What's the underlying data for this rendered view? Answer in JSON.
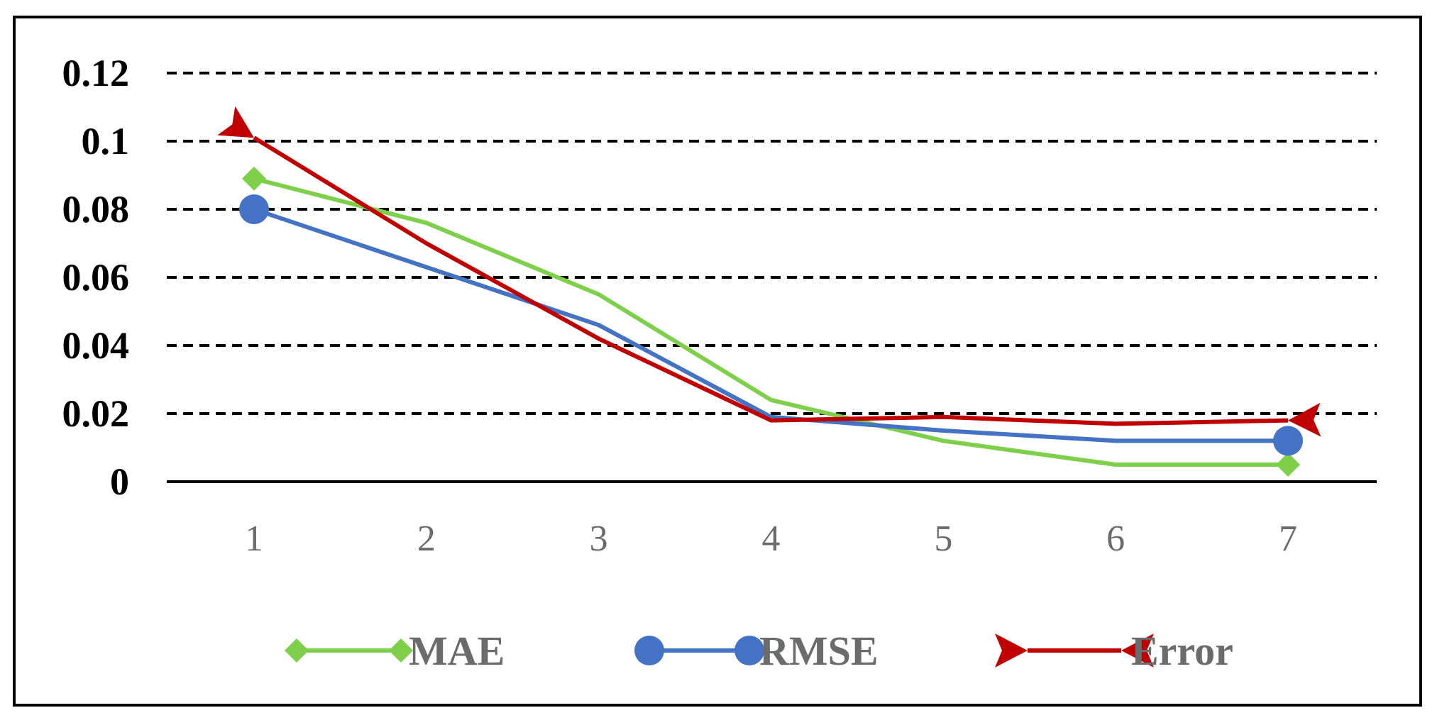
{
  "chart_data": {
    "type": "line",
    "title": "",
    "xlabel": "",
    "ylabel": "",
    "x": [
      1,
      2,
      3,
      4,
      5,
      6,
      7
    ],
    "x_tick_labels": [
      "1",
      "2",
      "3",
      "4",
      "5",
      "6",
      "7"
    ],
    "ylim": [
      0,
      0.12
    ],
    "y_ticks": [
      0,
      0.02,
      0.04,
      0.06,
      0.08,
      0.1,
      0.12
    ],
    "y_tick_labels": [
      "0",
      "0.02",
      "0.04",
      "0.06",
      "0.08",
      "0.1",
      "0.12"
    ],
    "grid": true,
    "grid_style": "dashed",
    "legend_position": "bottom",
    "series": [
      {
        "name": "MAE",
        "color": "#7ED04B",
        "marker": "diamond",
        "values": [
          0.089,
          0.076,
          0.055,
          0.024,
          0.012,
          0.005,
          0.005
        ]
      },
      {
        "name": "RMSE",
        "color": "#4472C4",
        "marker": "circle",
        "values": [
          0.08,
          0.063,
          0.046,
          0.019,
          0.015,
          0.012,
          0.012
        ]
      },
      {
        "name": "Error",
        "color": "#C00000",
        "marker": "arrow",
        "values": [
          0.101,
          0.07,
          0.042,
          0.018,
          0.019,
          0.017,
          0.018
        ]
      }
    ]
  }
}
